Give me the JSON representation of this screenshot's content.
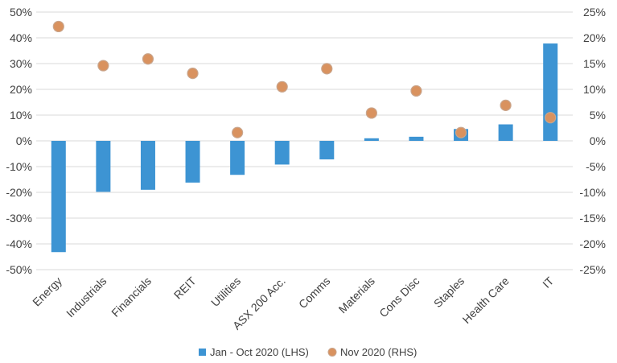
{
  "chart_data": {
    "type": "bar",
    "categories": [
      "Energy",
      "Industrials",
      "Financials",
      "REIT",
      "Utilities",
      "ASX 200 Acc.",
      "Comms",
      "Materials",
      "Cons Disc",
      "Staples",
      "Health Care",
      "IT"
    ],
    "series": [
      {
        "name": "Jan - Oct 2020 (LHS)",
        "type": "bar",
        "axis": "left",
        "color": "#3d94d3",
        "values": [
          -43.2,
          -19.8,
          -19.0,
          -16.2,
          -13.2,
          -9.2,
          -7.2,
          1.0,
          1.6,
          4.6,
          6.4,
          37.8
        ]
      },
      {
        "name": "Nov 2020 (RHS)",
        "type": "scatter",
        "axis": "right",
        "color": "#d9925f",
        "values": [
          22.2,
          14.6,
          15.9,
          13.1,
          1.6,
          10.5,
          14.0,
          5.4,
          9.7,
          1.6,
          6.9,
          4.5
        ]
      }
    ],
    "left_axis": {
      "ylim": [
        -50,
        50
      ],
      "ticks": [
        "50%",
        "40%",
        "30%",
        "20%",
        "10%",
        "0%",
        "-10%",
        "-20%",
        "-30%",
        "-40%",
        "-50%"
      ]
    },
    "right_axis": {
      "ylim": [
        -25,
        25
      ],
      "ticks": [
        "25%",
        "20%",
        "15%",
        "10%",
        "5%",
        "0%",
        "-5%",
        "-10%",
        "-15%",
        "-20%",
        "-25%"
      ]
    },
    "grid": true,
    "legend": "bottom"
  }
}
